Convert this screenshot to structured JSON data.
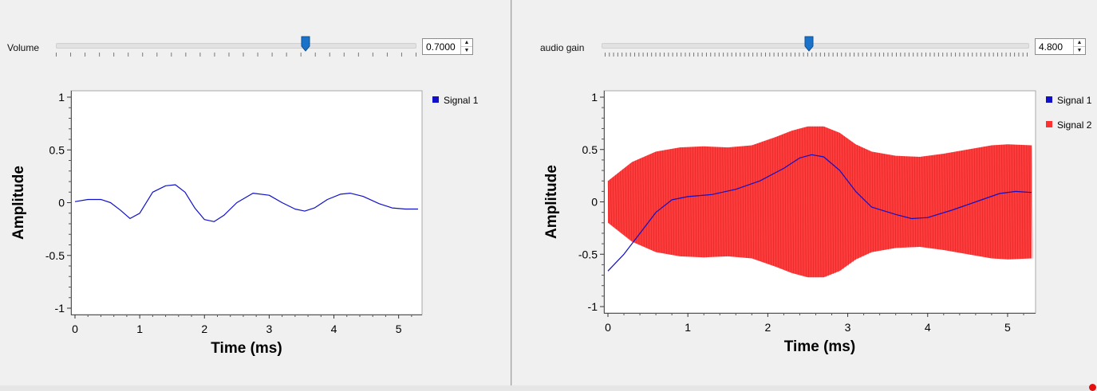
{
  "colors": {
    "signal1": "#1010c8",
    "signal2": "#ff3030",
    "handle": "#1a73c8"
  },
  "left": {
    "slider": {
      "label": "Volume",
      "value": "0.7000",
      "fraction": 0.7
    },
    "plot": {
      "ylabel": "Amplitude",
      "xlabel": "Time (ms)",
      "yticks": [
        "1",
        "0.5",
        "0",
        "-0.5",
        "-1"
      ],
      "xticks": [
        "0",
        "1",
        "2",
        "3",
        "4",
        "5"
      ],
      "legend": [
        "Signal 1"
      ]
    }
  },
  "right": {
    "slider": {
      "label": "audio gain",
      "value": "4.800",
      "fraction": 0.48
    },
    "plot": {
      "ylabel": "Amplitude",
      "xlabel": "Time (ms)",
      "yticks": [
        "1",
        "0.5",
        "0",
        "-0.5",
        "-1"
      ],
      "xticks": [
        "0",
        "1",
        "2",
        "3",
        "4",
        "5"
      ],
      "legend": [
        "Signal 1",
        "Signal 2"
      ]
    }
  },
  "chart_data": [
    {
      "type": "line",
      "xlabel": "Time (ms)",
      "ylabel": "Amplitude",
      "xlim": [
        0,
        5.3
      ],
      "ylim": [
        -1,
        1
      ],
      "grid": false,
      "legend_position": "right",
      "series": [
        {
          "name": "Signal 1",
          "x": [
            0,
            0.2,
            0.4,
            0.55,
            0.7,
            0.85,
            1.0,
            1.2,
            1.4,
            1.55,
            1.7,
            1.85,
            2.0,
            2.15,
            2.3,
            2.5,
            2.75,
            3.0,
            3.2,
            3.4,
            3.55,
            3.7,
            3.9,
            4.1,
            4.25,
            4.45,
            4.7,
            4.9,
            5.1,
            5.3
          ],
          "y": [
            0.01,
            0.03,
            0.03,
            0.0,
            -0.07,
            -0.15,
            -0.1,
            0.1,
            0.16,
            0.17,
            0.1,
            -0.05,
            -0.16,
            -0.18,
            -0.12,
            0.0,
            0.09,
            0.07,
            0.0,
            -0.06,
            -0.08,
            -0.05,
            0.03,
            0.08,
            0.09,
            0.06,
            -0.01,
            -0.05,
            -0.06,
            -0.06
          ]
        }
      ]
    },
    {
      "type": "line",
      "xlabel": "Time (ms)",
      "ylabel": "Amplitude",
      "xlim": [
        0,
        5.3
      ],
      "ylim": [
        -1,
        1
      ],
      "grid": false,
      "legend_position": "right",
      "series": [
        {
          "name": "Signal 1",
          "x": [
            0,
            0.2,
            0.4,
            0.6,
            0.8,
            1.0,
            1.3,
            1.6,
            1.9,
            2.2,
            2.4,
            2.55,
            2.7,
            2.9,
            3.1,
            3.3,
            3.6,
            3.8,
            4.0,
            4.3,
            4.6,
            4.9,
            5.1,
            5.3
          ],
          "y": [
            -0.66,
            -0.5,
            -0.3,
            -0.1,
            0.02,
            0.05,
            0.07,
            0.12,
            0.2,
            0.32,
            0.42,
            0.45,
            0.43,
            0.3,
            0.1,
            -0.05,
            -0.12,
            -0.16,
            -0.15,
            -0.08,
            0.0,
            0.08,
            0.1,
            0.09
          ]
        },
        {
          "name": "Signal 2",
          "x": [
            0,
            0.3,
            0.6,
            0.9,
            1.2,
            1.5,
            1.8,
            2.1,
            2.3,
            2.5,
            2.7,
            2.9,
            3.1,
            3.3,
            3.6,
            3.9,
            4.2,
            4.5,
            4.8,
            5.0,
            5.3
          ],
          "upper": [
            0.2,
            0.38,
            0.48,
            0.52,
            0.53,
            0.52,
            0.54,
            0.62,
            0.68,
            0.72,
            0.72,
            0.66,
            0.55,
            0.48,
            0.44,
            0.43,
            0.46,
            0.5,
            0.54,
            0.55,
            0.54
          ],
          "lower": [
            -0.2,
            -0.38,
            -0.48,
            -0.52,
            -0.53,
            -0.52,
            -0.54,
            -0.62,
            -0.68,
            -0.72,
            -0.72,
            -0.66,
            -0.55,
            -0.48,
            -0.44,
            -0.43,
            -0.46,
            -0.5,
            -0.54,
            -0.55,
            -0.54
          ]
        }
      ]
    }
  ]
}
